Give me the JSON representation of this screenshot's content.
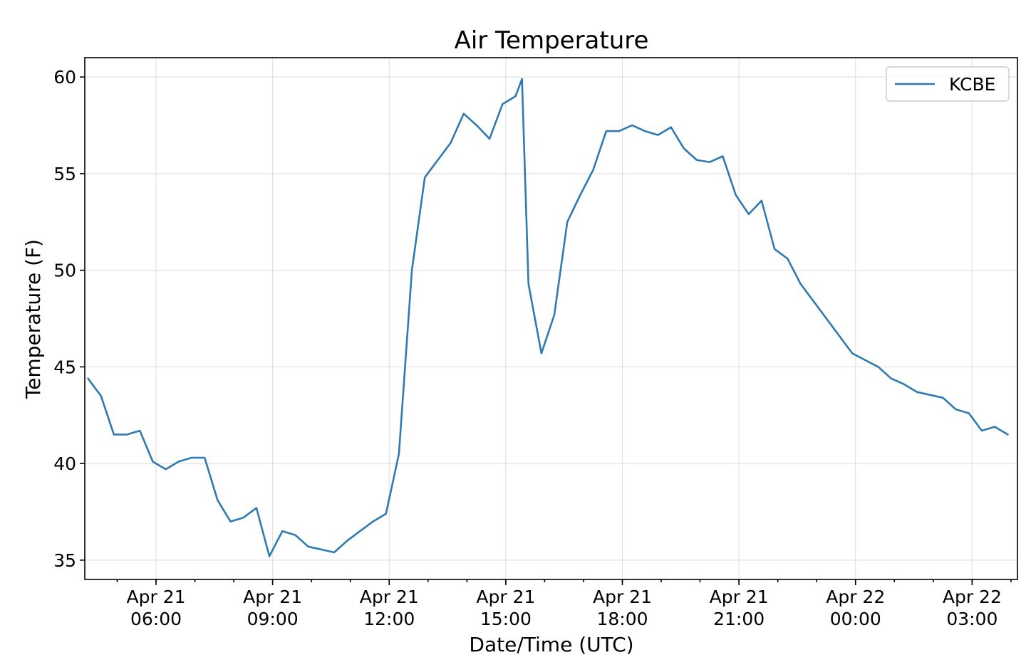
{
  "chart_data": {
    "type": "line",
    "title": "Air Temperature",
    "xlabel": "Date/Time (UTC)",
    "ylabel": "Temperature (F)",
    "grid": true,
    "legend_position": "top-right",
    "colors": {
      "series": "#2f7ab1"
    },
    "xlim": [
      "2021-04-21T04:10",
      "2021-04-22T04:10"
    ],
    "ylim": [
      34,
      61
    ],
    "y_ticks": [
      35,
      40,
      45,
      50,
      55,
      60
    ],
    "x_ticks": [
      {
        "t": "2021-04-21T06:00",
        "date": "Apr 21",
        "time": "06:00"
      },
      {
        "t": "2021-04-21T09:00",
        "date": "Apr 21",
        "time": "09:00"
      },
      {
        "t": "2021-04-21T12:00",
        "date": "Apr 21",
        "time": "12:00"
      },
      {
        "t": "2021-04-21T15:00",
        "date": "Apr 21",
        "time": "15:00"
      },
      {
        "t": "2021-04-21T18:00",
        "date": "Apr 21",
        "time": "18:00"
      },
      {
        "t": "2021-04-21T21:00",
        "date": "Apr 21",
        "time": "21:00"
      },
      {
        "t": "2021-04-22T00:00",
        "date": "Apr 22",
        "time": "00:00"
      },
      {
        "t": "2021-04-22T03:00",
        "date": "Apr 22",
        "time": "03:00"
      }
    ],
    "series": [
      {
        "name": "KCBE",
        "points": [
          [
            "2021-04-21T04:15",
            44.4
          ],
          [
            "2021-04-21T04:35",
            43.5
          ],
          [
            "2021-04-21T04:55",
            41.5
          ],
          [
            "2021-04-21T05:15",
            41.5
          ],
          [
            "2021-04-21T05:35",
            41.7
          ],
          [
            "2021-04-21T05:55",
            40.1
          ],
          [
            "2021-04-21T06:15",
            39.7
          ],
          [
            "2021-04-21T06:35",
            40.1
          ],
          [
            "2021-04-21T06:55",
            40.3
          ],
          [
            "2021-04-21T07:15",
            40.3
          ],
          [
            "2021-04-21T07:35",
            38.1
          ],
          [
            "2021-04-21T07:55",
            37.0
          ],
          [
            "2021-04-21T08:15",
            37.2
          ],
          [
            "2021-04-21T08:35",
            37.7
          ],
          [
            "2021-04-21T08:55",
            35.2
          ],
          [
            "2021-04-21T09:15",
            36.5
          ],
          [
            "2021-04-21T09:35",
            36.3
          ],
          [
            "2021-04-21T09:55",
            35.7
          ],
          [
            "2021-04-21T10:35",
            35.4
          ],
          [
            "2021-04-21T10:55",
            36.0
          ],
          [
            "2021-04-21T11:15",
            36.5
          ],
          [
            "2021-04-21T11:35",
            37.0
          ],
          [
            "2021-04-21T11:55",
            37.4
          ],
          [
            "2021-04-21T12:15",
            40.5
          ],
          [
            "2021-04-21T12:35",
            50.0
          ],
          [
            "2021-04-21T12:55",
            54.8
          ],
          [
            "2021-04-21T13:35",
            56.6
          ],
          [
            "2021-04-21T13:55",
            58.1
          ],
          [
            "2021-04-21T14:15",
            57.5
          ],
          [
            "2021-04-21T14:35",
            56.8
          ],
          [
            "2021-04-21T14:55",
            58.6
          ],
          [
            "2021-04-21T15:15",
            59.0
          ],
          [
            "2021-04-21T15:25",
            59.9
          ],
          [
            "2021-04-21T15:35",
            49.3
          ],
          [
            "2021-04-21T15:55",
            45.7
          ],
          [
            "2021-04-21T16:15",
            47.7
          ],
          [
            "2021-04-21T16:35",
            52.5
          ],
          [
            "2021-04-21T16:55",
            53.9
          ],
          [
            "2021-04-21T17:15",
            55.2
          ],
          [
            "2021-04-21T17:35",
            57.2
          ],
          [
            "2021-04-21T17:55",
            57.2
          ],
          [
            "2021-04-21T18:15",
            57.5
          ],
          [
            "2021-04-21T18:35",
            57.2
          ],
          [
            "2021-04-21T18:55",
            57.0
          ],
          [
            "2021-04-21T19:15",
            57.4
          ],
          [
            "2021-04-21T19:35",
            56.3
          ],
          [
            "2021-04-21T19:55",
            55.7
          ],
          [
            "2021-04-21T20:15",
            55.6
          ],
          [
            "2021-04-21T20:35",
            55.9
          ],
          [
            "2021-04-21T20:55",
            53.9
          ],
          [
            "2021-04-21T21:15",
            52.9
          ],
          [
            "2021-04-21T21:35",
            53.6
          ],
          [
            "2021-04-21T21:55",
            51.1
          ],
          [
            "2021-04-21T22:15",
            50.6
          ],
          [
            "2021-04-21T22:35",
            49.3
          ],
          [
            "2021-04-21T23:55",
            45.7
          ],
          [
            "2021-04-22T00:35",
            45.0
          ],
          [
            "2021-04-22T00:55",
            44.4
          ],
          [
            "2021-04-22T01:15",
            44.1
          ],
          [
            "2021-04-22T01:35",
            43.7
          ],
          [
            "2021-04-22T02:15",
            43.4
          ],
          [
            "2021-04-22T02:35",
            42.8
          ],
          [
            "2021-04-22T02:55",
            42.6
          ],
          [
            "2021-04-22T03:15",
            41.7
          ],
          [
            "2021-04-22T03:35",
            41.9
          ],
          [
            "2021-04-22T03:55",
            41.5
          ]
        ]
      }
    ]
  }
}
